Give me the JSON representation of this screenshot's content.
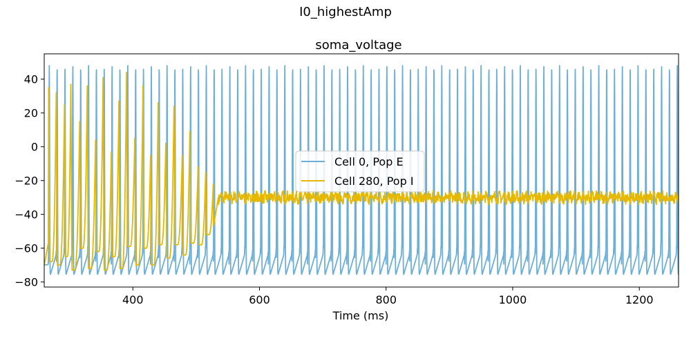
{
  "figure": {
    "suptitle": "I0_highestAmp"
  },
  "chart_data": {
    "type": "line",
    "title": "soma_voltage",
    "xlabel": "Time (ms)",
    "ylabel": "",
    "xlim": [
      260,
      1262
    ],
    "ylim": [
      -83,
      55
    ],
    "xticks": [
      400,
      600,
      800,
      1000,
      1200
    ],
    "yticks": [
      -80,
      -60,
      -40,
      -20,
      0,
      20,
      40
    ],
    "grid": false,
    "legend_position": "center",
    "series": [
      {
        "name": "Cell 0, Pop E",
        "color": "#6baed6",
        "pattern": "regular spiking",
        "t_start": 260,
        "t_end": 1262,
        "first_spike_ms": 268,
        "spike_interval_ms": 12.4,
        "peak_mv": 48,
        "trough_mv": -76,
        "resting_start_mv": -70
      },
      {
        "name": "Cell 280, Pop I",
        "color": "#e6b800",
        "pattern": "damped bursting then noisy plateau",
        "t_start": 260,
        "t_end": 1262,
        "spike_times_ms": [
          267,
          279,
          292,
          302,
          316,
          328,
          341,
          353,
          366,
          378,
          390,
          403,
          416,
          428,
          440,
          452,
          465,
          478,
          490,
          503,
          515,
          527
        ],
        "spike_peaks_mv": [
          35,
          32,
          25,
          37,
          15,
          36,
          4,
          41,
          -3,
          27,
          44,
          5,
          36,
          -5,
          26,
          2,
          24,
          -5,
          9,
          -12,
          -15,
          -22
        ],
        "spike_troughs_mv": [
          -68,
          -70,
          -65,
          -73,
          -60,
          -72,
          -62,
          -73,
          -65,
          -72,
          -59,
          -70,
          -60,
          -70,
          -58,
          -66,
          -58,
          -64,
          -57,
          -58,
          -52,
          -48
        ],
        "plateau_mv": -30,
        "plateau_noise_mv": 3
      }
    ]
  }
}
